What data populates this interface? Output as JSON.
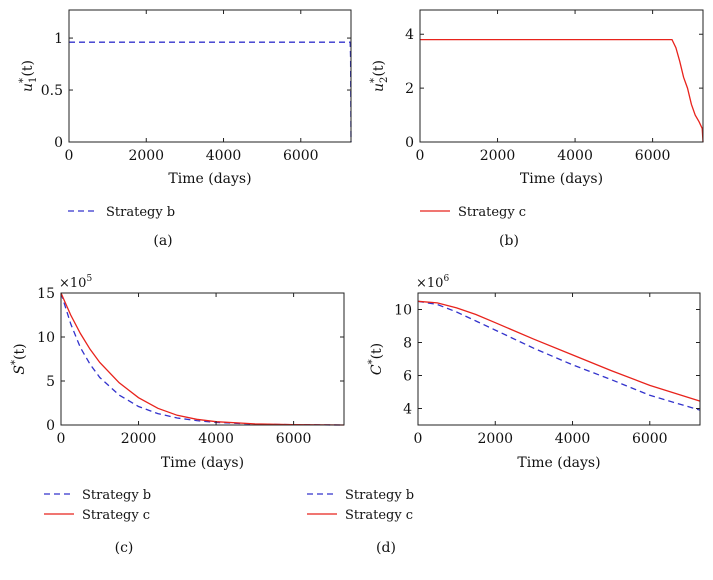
{
  "chart_data": [
    {
      "id": "a",
      "type": "line",
      "caption": "(a)",
      "ylabel": "u*_1(t)",
      "ylabel_main": "u",
      "ylabel_sup": "*",
      "ylabel_sub": "1",
      "ylabel_tail": "(t)",
      "xlabel": "Time (days)",
      "xlim": [
        0,
        7300
      ],
      "ylim": [
        0,
        1.27
      ],
      "xticks": [
        0,
        2000,
        4000,
        6000
      ],
      "yticks": [
        0,
        0.5,
        1
      ],
      "ytick_labels": [
        "0",
        "0.5",
        "1"
      ],
      "multiplier": "",
      "series": [
        {
          "name": "Strategy b",
          "color": "#3333cc",
          "dash": true,
          "points": [
            [
              0,
              0.96
            ],
            [
              7280,
              0.96
            ],
            [
              7290,
              0.8
            ],
            [
              7300,
              0
            ]
          ]
        }
      ]
    },
    {
      "id": "b",
      "type": "line",
      "caption": "(b)",
      "ylabel": "u*_2(t)",
      "ylabel_main": "u",
      "ylabel_sup": "*",
      "ylabel_sub": "2",
      "ylabel_tail": "(t)",
      "xlabel": "Time (days)",
      "xlim": [
        0,
        7300
      ],
      "ylim": [
        0,
        4.9
      ],
      "xticks": [
        0,
        2000,
        4000,
        6000
      ],
      "yticks": [
        0,
        2,
        4
      ],
      "ytick_labels": [
        "0",
        "2",
        "4"
      ],
      "multiplier": "",
      "series": [
        {
          "name": "Strategy c",
          "color": "#e8231c",
          "dash": false,
          "points": [
            [
              0,
              3.8
            ],
            [
              6500,
              3.8
            ],
            [
              6600,
              3.5
            ],
            [
              6700,
              3.0
            ],
            [
              6800,
              2.4
            ],
            [
              6900,
              2.0
            ],
            [
              7000,
              1.4
            ],
            [
              7100,
              1.0
            ],
            [
              7200,
              0.75
            ],
            [
              7280,
              0.5
            ],
            [
              7300,
              0
            ]
          ]
        }
      ]
    },
    {
      "id": "c",
      "type": "line",
      "caption": "(c)",
      "ylabel": "S*(t)",
      "ylabel_main": "S",
      "ylabel_sup": "*",
      "ylabel_sub": "",
      "ylabel_tail": "(t)",
      "xlabel": "Time (days)",
      "xlim": [
        0,
        7300
      ],
      "ylim": [
        0,
        15
      ],
      "xticks": [
        0,
        2000,
        4000,
        6000
      ],
      "yticks": [
        0,
        5,
        10,
        15
      ],
      "ytick_labels": [
        "0",
        "5",
        "10",
        "15"
      ],
      "multiplier": "×10",
      "multiplier_exp": "5",
      "series": [
        {
          "name": "Strategy b",
          "color": "#3333cc",
          "dash": true,
          "points": [
            [
              0,
              15
            ],
            [
              250,
              11.5
            ],
            [
              500,
              8.8
            ],
            [
              750,
              6.9
            ],
            [
              1000,
              5.4
            ],
            [
              1500,
              3.4
            ],
            [
              2000,
              2.1
            ],
            [
              2500,
              1.3
            ],
            [
              3000,
              0.8
            ],
            [
              3500,
              0.5
            ],
            [
              4000,
              0.3
            ],
            [
              5000,
              0.1
            ],
            [
              6000,
              0.03
            ],
            [
              7300,
              0
            ]
          ]
        },
        {
          "name": "Strategy c",
          "color": "#e8231c",
          "dash": false,
          "points": [
            [
              0,
              15
            ],
            [
              250,
              12.5
            ],
            [
              500,
              10.4
            ],
            [
              750,
              8.6
            ],
            [
              1000,
              7.1
            ],
            [
              1500,
              4.8
            ],
            [
              2000,
              3.1
            ],
            [
              2500,
              1.9
            ],
            [
              3000,
              1.1
            ],
            [
              3500,
              0.65
            ],
            [
              4000,
              0.38
            ],
            [
              5000,
              0.12
            ],
            [
              6000,
              0.04
            ],
            [
              7300,
              0
            ]
          ]
        }
      ]
    },
    {
      "id": "d",
      "type": "line",
      "caption": "(d)",
      "ylabel": "C*(t)",
      "ylabel_main": "C",
      "ylabel_sup": "*",
      "ylabel_sub": "",
      "ylabel_tail": "(t)",
      "xlabel": "Time (days)",
      "xlim": [
        0,
        7300
      ],
      "ylim": [
        3,
        11
      ],
      "xticks": [
        0,
        2000,
        4000,
        6000
      ],
      "yticks": [
        4,
        6,
        8,
        10
      ],
      "ytick_labels": [
        "4",
        "6",
        "8",
        "10"
      ],
      "multiplier": "×10",
      "multiplier_exp": "6",
      "series": [
        {
          "name": "Strategy b",
          "color": "#3333cc",
          "dash": true,
          "points": [
            [
              0,
              10.5
            ],
            [
              500,
              10.3
            ],
            [
              1000,
              9.85
            ],
            [
              1500,
              9.3
            ],
            [
              2000,
              8.75
            ],
            [
              3000,
              7.65
            ],
            [
              4000,
              6.65
            ],
            [
              5000,
              5.75
            ],
            [
              6000,
              4.8
            ],
            [
              7300,
              3.9
            ]
          ]
        },
        {
          "name": "Strategy c",
          "color": "#e8231c",
          "dash": false,
          "points": [
            [
              0,
              10.5
            ],
            [
              500,
              10.4
            ],
            [
              1000,
              10.1
            ],
            [
              1500,
              9.7
            ],
            [
              2000,
              9.2
            ],
            [
              3000,
              8.2
            ],
            [
              4000,
              7.25
            ],
            [
              5000,
              6.3
            ],
            [
              6000,
              5.4
            ],
            [
              7300,
              4.45
            ]
          ]
        }
      ]
    }
  ]
}
